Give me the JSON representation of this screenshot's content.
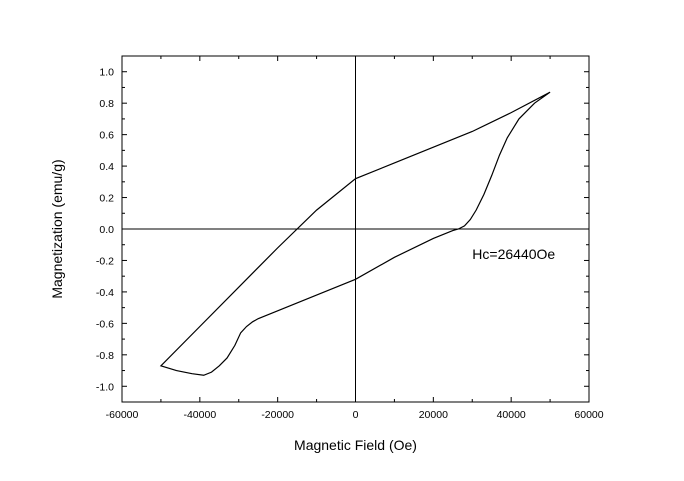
{
  "chart_data": {
    "type": "line",
    "title": "",
    "xlabel": "Magnetic Field (Oe)",
    "ylabel": "Magnetization (emu/g)",
    "xlim": [
      -60000,
      60000
    ],
    "ylim": [
      -1.1,
      1.1
    ],
    "x_ticks": [
      -60000,
      -40000,
      -20000,
      0,
      20000,
      40000,
      60000
    ],
    "x_tick_labels": [
      "-60000",
      "-40000",
      "-20000",
      "0",
      "20000",
      "40000",
      "60000"
    ],
    "y_ticks": [
      -1.0,
      -0.8,
      -0.6,
      -0.4,
      -0.2,
      0.0,
      0.2,
      0.4,
      0.6,
      0.8,
      1.0
    ],
    "y_tick_labels": [
      "-1.0",
      "-0.8",
      "-0.6",
      "-0.4",
      "-0.2",
      "0.0",
      "0.2",
      "0.4",
      "0.6",
      "0.8",
      "1.0"
    ],
    "grid": false,
    "zero_lines": true,
    "annotation": {
      "text": "Hc=26440Oe",
      "x": 30000,
      "y": -0.19
    },
    "series": [
      {
        "x": [
          50000,
          46000,
          42000,
          39000,
          37000,
          35000,
          33000,
          31000,
          29500,
          28000,
          26440,
          25000,
          20000,
          10000,
          0,
          -10000,
          -20000,
          -25000,
          -26440,
          -28000,
          -29500,
          -31000,
          -33000,
          -35000,
          -37000,
          -39000,
          -42000,
          -46000,
          -50000,
          -40000,
          -30000,
          -20000,
          -10000,
          0,
          10000,
          20000,
          30000,
          40000,
          50000
        ],
        "y": [
          0.87,
          0.8,
          0.7,
          0.58,
          0.47,
          0.34,
          0.22,
          0.12,
          0.06,
          0.02,
          0.0,
          -0.01,
          -0.06,
          -0.18,
          -0.32,
          -0.42,
          -0.52,
          -0.57,
          -0.59,
          -0.62,
          -0.66,
          -0.74,
          -0.82,
          -0.87,
          -0.91,
          -0.93,
          -0.92,
          -0.9,
          -0.87,
          -0.62,
          -0.37,
          -0.12,
          0.12,
          0.32,
          0.42,
          0.52,
          0.62,
          0.74,
          0.87
        ]
      }
    ]
  }
}
